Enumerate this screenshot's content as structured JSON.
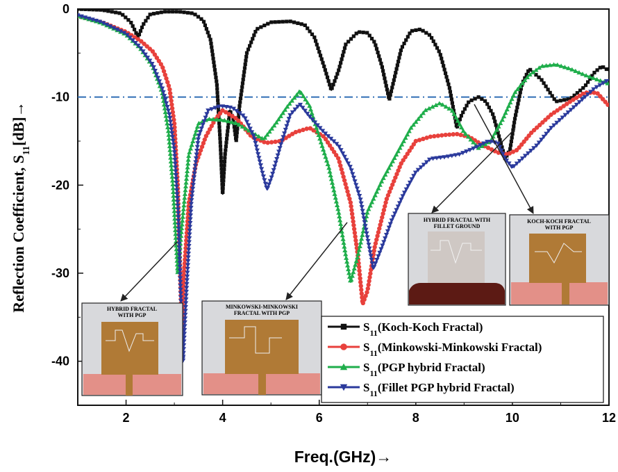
{
  "chart_data": {
    "type": "line",
    "title": "",
    "xlabel": "Freq.(GHz)→",
    "ylabel_main": "Reflection Coefficient, S",
    "ylabel_sub": "11",
    "ylabel_tail": "[dB]→",
    "xlim": [
      1,
      12
    ],
    "ylim": [
      -45,
      0
    ],
    "x_ticks": [
      2,
      4,
      6,
      8,
      10,
      12
    ],
    "y_ticks": [
      0,
      -10,
      -20,
      -30,
      -40
    ],
    "x_tick_labels": [
      "2",
      "4",
      "6",
      "8",
      "10",
      "12"
    ],
    "y_tick_labels": [
      "0",
      "-10",
      "-20",
      "-30",
      "-40"
    ],
    "grid": false,
    "legend_position": "bottom-right",
    "reference_line": {
      "y": -10,
      "style": "dash-dot",
      "color": "#2f6db5"
    },
    "series": [
      {
        "name": "S",
        "name_sub": "11",
        "name_tail": "(Koch-Koch Fractal)",
        "color": "#111111",
        "marker": "square",
        "points": [
          [
            1,
            0
          ],
          [
            1.5,
            -0.1
          ],
          [
            1.9,
            -0.5
          ],
          [
            2.1,
            -1.5
          ],
          [
            2.25,
            -3.2
          ],
          [
            2.35,
            -1.8
          ],
          [
            2.5,
            -0.6
          ],
          [
            2.8,
            -0.3
          ],
          [
            3.1,
            -0.3
          ],
          [
            3.4,
            -0.5
          ],
          [
            3.6,
            -1.3
          ],
          [
            3.75,
            -3.5
          ],
          [
            3.88,
            -8.5
          ],
          [
            3.95,
            -15
          ],
          [
            4.0,
            -21
          ],
          [
            4.05,
            -16.5
          ],
          [
            4.15,
            -11.5
          ],
          [
            4.22,
            -12.5
          ],
          [
            4.28,
            -15
          ],
          [
            4.35,
            -11
          ],
          [
            4.5,
            -5
          ],
          [
            4.7,
            -2.3
          ],
          [
            5.0,
            -1.5
          ],
          [
            5.4,
            -1.4
          ],
          [
            5.7,
            -1.8
          ],
          [
            5.9,
            -3.2
          ],
          [
            6.1,
            -6.5
          ],
          [
            6.25,
            -9.2
          ],
          [
            6.4,
            -7
          ],
          [
            6.55,
            -4
          ],
          [
            6.8,
            -2.6
          ],
          [
            7.0,
            -2.7
          ],
          [
            7.15,
            -3.8
          ],
          [
            7.3,
            -6.5
          ],
          [
            7.45,
            -10.3
          ],
          [
            7.55,
            -8
          ],
          [
            7.7,
            -4.5
          ],
          [
            7.9,
            -2.5
          ],
          [
            8.1,
            -2.3
          ],
          [
            8.3,
            -3
          ],
          [
            8.5,
            -5
          ],
          [
            8.7,
            -9
          ],
          [
            8.85,
            -13.5
          ],
          [
            8.95,
            -12
          ],
          [
            9.1,
            -10.5
          ],
          [
            9.3,
            -10
          ],
          [
            9.45,
            -10.5
          ],
          [
            9.6,
            -12
          ],
          [
            9.75,
            -15
          ],
          [
            9.85,
            -17
          ],
          [
            9.95,
            -16
          ],
          [
            10.05,
            -12.5
          ],
          [
            10.2,
            -8.5
          ],
          [
            10.35,
            -6.8
          ],
          [
            10.6,
            -8
          ],
          [
            10.9,
            -10.5
          ],
          [
            11.2,
            -10.2
          ],
          [
            11.5,
            -8.8
          ],
          [
            11.7,
            -7.2
          ],
          [
            11.85,
            -6.5
          ],
          [
            12,
            -7
          ]
        ]
      },
      {
        "name": "S",
        "name_sub": "11",
        "name_tail": "(Minkowski-Minkowski Fractal)",
        "color": "#e8413c",
        "marker": "circle",
        "points": [
          [
            1,
            -0.8
          ],
          [
            1.5,
            -1.5
          ],
          [
            2.0,
            -2.6
          ],
          [
            2.3,
            -3.6
          ],
          [
            2.55,
            -4.8
          ],
          [
            2.75,
            -6.5
          ],
          [
            2.9,
            -9
          ],
          [
            3.0,
            -13
          ],
          [
            3.07,
            -20
          ],
          [
            3.12,
            -30
          ],
          [
            3.16,
            -37
          ],
          [
            3.2,
            -30
          ],
          [
            3.3,
            -22
          ],
          [
            3.45,
            -17.5
          ],
          [
            3.65,
            -14.5
          ],
          [
            3.85,
            -12.5
          ],
          [
            4.0,
            -11.5
          ],
          [
            4.3,
            -12.5
          ],
          [
            4.6,
            -14.5
          ],
          [
            4.9,
            -15.2
          ],
          [
            5.2,
            -15
          ],
          [
            5.5,
            -14
          ],
          [
            5.8,
            -13.5
          ],
          [
            6.1,
            -14.5
          ],
          [
            6.4,
            -17
          ],
          [
            6.65,
            -22
          ],
          [
            6.8,
            -28
          ],
          [
            6.9,
            -33.5
          ],
          [
            7.0,
            -32
          ],
          [
            7.15,
            -27
          ],
          [
            7.4,
            -21.5
          ],
          [
            7.7,
            -17.5
          ],
          [
            8.0,
            -15
          ],
          [
            8.3,
            -14.5
          ],
          [
            8.6,
            -14.3
          ],
          [
            8.85,
            -14.2
          ],
          [
            9.1,
            -14.5
          ],
          [
            9.4,
            -15.5
          ],
          [
            9.7,
            -16.3
          ],
          [
            9.9,
            -16.5
          ],
          [
            10.1,
            -16
          ],
          [
            10.4,
            -14
          ],
          [
            10.8,
            -12
          ],
          [
            11.2,
            -10.5
          ],
          [
            11.5,
            -9.5
          ],
          [
            11.75,
            -9.5
          ],
          [
            12,
            -11
          ]
        ]
      },
      {
        "name": "S",
        "name_sub": "11",
        "name_tail": "(PGP hybrid Fractal)",
        "color": "#1fae4b",
        "marker": "triangle",
        "points": [
          [
            1,
            -0.8
          ],
          [
            1.5,
            -1.6
          ],
          [
            2.0,
            -2.9
          ],
          [
            2.3,
            -4.5
          ],
          [
            2.55,
            -6.5
          ],
          [
            2.75,
            -9.5
          ],
          [
            2.88,
            -14
          ],
          [
            2.97,
            -20
          ],
          [
            3.03,
            -26
          ],
          [
            3.07,
            -30
          ],
          [
            3.15,
            -25
          ],
          [
            3.3,
            -16.5
          ],
          [
            3.5,
            -13
          ],
          [
            3.7,
            -12.5
          ],
          [
            4.0,
            -12.6
          ],
          [
            4.3,
            -13
          ],
          [
            4.6,
            -14
          ],
          [
            4.85,
            -14.8
          ],
          [
            5.1,
            -13
          ],
          [
            5.35,
            -11
          ],
          [
            5.6,
            -9.3
          ],
          [
            5.8,
            -11
          ],
          [
            6.0,
            -14.5
          ],
          [
            6.2,
            -18
          ],
          [
            6.4,
            -23
          ],
          [
            6.55,
            -28
          ],
          [
            6.65,
            -31
          ],
          [
            6.8,
            -28
          ],
          [
            7.0,
            -23
          ],
          [
            7.3,
            -19.5
          ],
          [
            7.6,
            -16.5
          ],
          [
            7.9,
            -13.5
          ],
          [
            8.2,
            -11.5
          ],
          [
            8.5,
            -10.7
          ],
          [
            8.75,
            -11.5
          ],
          [
            9.0,
            -14
          ],
          [
            9.3,
            -15.8
          ],
          [
            9.55,
            -15
          ],
          [
            9.8,
            -12.5
          ],
          [
            10.05,
            -9.5
          ],
          [
            10.35,
            -7.5
          ],
          [
            10.6,
            -6.5
          ],
          [
            10.9,
            -6.3
          ],
          [
            11.2,
            -6.8
          ],
          [
            11.5,
            -7.5
          ],
          [
            11.75,
            -8
          ],
          [
            12,
            -8.5
          ]
        ]
      },
      {
        "name": "S",
        "name_sub": "11",
        "name_tail": "(Fillet PGP hybrid Fractal)",
        "color": "#2b3a9c",
        "marker": "inverted-triangle",
        "points": [
          [
            1,
            -0.7
          ],
          [
            1.5,
            -1.5
          ],
          [
            2.0,
            -2.8
          ],
          [
            2.3,
            -4.4
          ],
          [
            2.55,
            -6.3
          ],
          [
            2.75,
            -9
          ],
          [
            2.9,
            -12
          ],
          [
            3.0,
            -16
          ],
          [
            3.08,
            -23
          ],
          [
            3.13,
            -32
          ],
          [
            3.18,
            -40
          ],
          [
            3.25,
            -32
          ],
          [
            3.35,
            -22
          ],
          [
            3.5,
            -14.5
          ],
          [
            3.7,
            -11.5
          ],
          [
            3.95,
            -11
          ],
          [
            4.2,
            -11.2
          ],
          [
            4.45,
            -12.2
          ],
          [
            4.65,
            -14.5
          ],
          [
            4.82,
            -18.5
          ],
          [
            4.92,
            -20.5
          ],
          [
            5.02,
            -19
          ],
          [
            5.2,
            -15.5
          ],
          [
            5.4,
            -12
          ],
          [
            5.6,
            -10.8
          ],
          [
            5.8,
            -12.2
          ],
          [
            6.1,
            -14
          ],
          [
            6.4,
            -15.5
          ],
          [
            6.65,
            -18
          ],
          [
            6.85,
            -21.5
          ],
          [
            7.0,
            -26
          ],
          [
            7.12,
            -29.5
          ],
          [
            7.3,
            -27
          ],
          [
            7.5,
            -24
          ],
          [
            7.75,
            -21
          ],
          [
            8.0,
            -18.5
          ],
          [
            8.3,
            -17
          ],
          [
            8.6,
            -16.8
          ],
          [
            8.9,
            -16.5
          ],
          [
            9.2,
            -15.8
          ],
          [
            9.5,
            -15
          ],
          [
            9.7,
            -15.2
          ],
          [
            9.85,
            -17
          ],
          [
            10.0,
            -18
          ],
          [
            10.2,
            -17
          ],
          [
            10.5,
            -15.5
          ],
          [
            10.8,
            -13.5
          ],
          [
            11.1,
            -12
          ],
          [
            11.4,
            -10.5
          ],
          [
            11.7,
            -9
          ],
          [
            11.85,
            -8.5
          ],
          [
            12,
            -8
          ]
        ]
      }
    ],
    "inset_labels": {
      "hybrid_pgp": [
        "HYBRID FRACTAL",
        "WITH PGP"
      ],
      "minkowski": [
        "MINKOWSKI-MINKOWSKI",
        "FRACTAL WITH PGP"
      ],
      "fillet": [
        "HYBRID FRACTAL WITH",
        "FILLET GROUND"
      ],
      "koch": [
        "KOCH-KOCH FRACTAL",
        "WITH PGP"
      ]
    }
  }
}
